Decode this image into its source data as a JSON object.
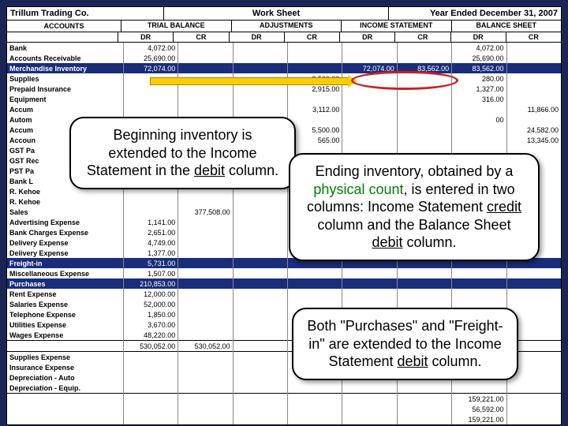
{
  "header": {
    "company": "Trillum Trading Co.",
    "title": "Work Sheet",
    "period": "Year Ended December 31, 2007"
  },
  "column_groups": {
    "accounts": "ACCOUNTS",
    "g1": "TRIAL BALANCE",
    "g2": "ADJUSTMENTS",
    "g3": "INCOME STATEMENT",
    "g4": "BALANCE SHEET",
    "dr": "DR",
    "cr": "CR"
  },
  "rows": [
    {
      "label": "Bank",
      "tb_dr": "4,072.00",
      "bs_dr": "4,072.00"
    },
    {
      "label": "Accounts Receivable",
      "tb_dr": "25,690.00",
      "bs_dr": "25,690.00"
    },
    {
      "label": "Merchandise Inventory",
      "tb_dr": "72,074.00",
      "is_dr": "72,074.00",
      "is_cr": "83,562.00",
      "bs_dr": "83,562.00",
      "hl": true
    },
    {
      "label": "Supplies",
      "tb_dr": "",
      "adj_cr": "2,560.00",
      "bs_dr": "280.00"
    },
    {
      "label": "Prepaid Insurance",
      "tb_dr": "",
      "adj_cr": "2,915.00",
      "bs_dr": "1,327.00"
    },
    {
      "label": "Equipment",
      "tb_dr": "",
      "bs_dr": "316.00"
    },
    {
      "label": "Accum",
      "adj_cr": "3,112.00",
      "bs_cr": "11,866.00"
    },
    {
      "label": "Autom",
      "bs_dr": "00"
    },
    {
      "label": "Accum",
      "adj_cr": "5,500.00",
      "bs_cr": "24,582.00"
    },
    {
      "label": "Accoun",
      "adj_cr": "565.00",
      "bs_cr": "13,345.00"
    },
    {
      "label": "GST Pa"
    },
    {
      "label": "GST Rec"
    },
    {
      "label": "PST Pa"
    },
    {
      "label": "Bank L"
    },
    {
      "label": "R. Kehoe"
    },
    {
      "label": "R. Kehoe"
    },
    {
      "label": "Sales",
      "tb_cr": "377,508.00"
    },
    {
      "label": "Advertising Expense",
      "tb_dr": "1,141.00"
    },
    {
      "label": "Bank Charges Expense",
      "tb_dr": "2,651.00"
    },
    {
      "label": "Delivery Expense",
      "tb_dr": "4,749.00"
    },
    {
      "label": "Delivery Expense",
      "tb_dr": "1,377.00"
    },
    {
      "label": "Freight-in",
      "tb_dr": "5,731.00",
      "hl": true
    },
    {
      "label": "Miscellaneous Expense",
      "tb_dr": "1,507.00"
    },
    {
      "label": "Purchases",
      "tb_dr": "210,853.00",
      "hl": true
    },
    {
      "label": "Rent Expense",
      "tb_dr": "12,000.00"
    },
    {
      "label": "Salaries Expense",
      "tb_dr": "52,000.00"
    },
    {
      "label": "Telephone Expense",
      "tb_dr": "1,850.00"
    },
    {
      "label": "Utilities Expense",
      "tb_dr": "3,670.00"
    },
    {
      "label": "Wages Expense",
      "tb_dr": "48,220.00"
    },
    {
      "label": "",
      "tb_dr": "530,052.00",
      "tb_cr": "530,052.00",
      "sep": true
    },
    {
      "label": "Supplies Expense",
      "sep": true
    },
    {
      "label": "Insurance Expense"
    },
    {
      "label": "Depreciation - Auto"
    },
    {
      "label": "Depreciation - Equip."
    },
    {
      "label": "",
      "bs_dr": "159,221.00",
      "sep": true
    },
    {
      "label": "",
      "bs_dr": "56,592.00"
    },
    {
      "label": "",
      "bs_dr": "159,221.00"
    }
  ],
  "callouts": {
    "c1": "Beginning inventory is extended to the Income Statement in the <u>debit</u> column.",
    "c2": "Ending inventory, obtained by a <g>physical count</g>, is entered in two columns:  Income Statement <u>credit</u> column and the Balance Sheet <u>debit</u> column.",
    "c3": "Both \"Purchases\" and \"Freight-in\" are extended to the Income Statement <u>debit</u> column."
  },
  "colors": {
    "page_bg": "#1a2455",
    "highlight_bg": "#1a2d7a",
    "arrow": "#ffcc00",
    "oval": "#cc2020",
    "green": "#008000"
  }
}
